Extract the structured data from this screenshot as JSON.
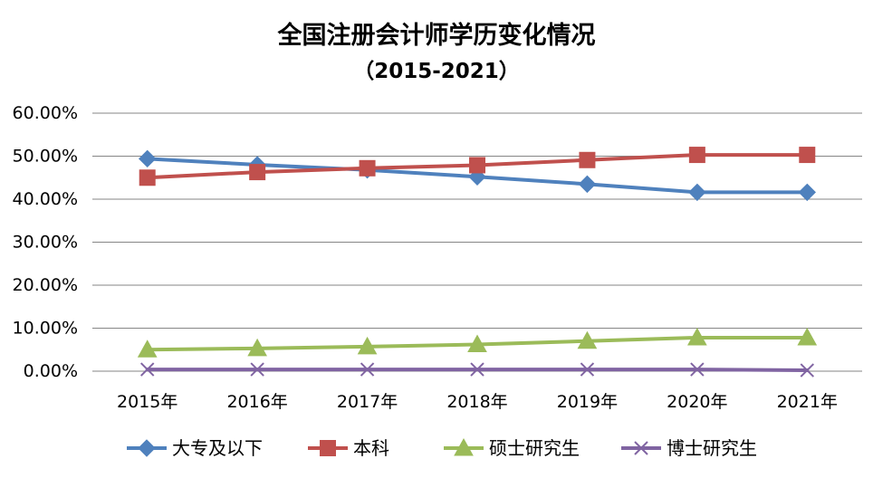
{
  "chart_data": {
    "type": "line",
    "title": "全国注册会计师学历变化情况",
    "subtitle": "（2015-2021）",
    "categories": [
      "2015年",
      "2016年",
      "2017年",
      "2018年",
      "2019年",
      "2020年",
      "2021年"
    ],
    "ylim": [
      0,
      60
    ],
    "yticks": [
      "0.00%",
      "10.00%",
      "20.00%",
      "30.00%",
      "40.00%",
      "50.00%",
      "60.00%"
    ],
    "grid": true,
    "legend_position": "bottom",
    "series": [
      {
        "name": "大专及以下",
        "color": "#4f81bd",
        "marker": "diamond",
        "values": [
          49.4,
          48.0,
          46.8,
          45.2,
          43.5,
          41.6,
          41.6
        ]
      },
      {
        "name": "本科",
        "color": "#c0504d",
        "marker": "square",
        "values": [
          45.0,
          46.3,
          47.2,
          47.9,
          49.1,
          50.3,
          50.3
        ]
      },
      {
        "name": "硕士研究生",
        "color": "#9bbb59",
        "marker": "triangle",
        "values": [
          5.0,
          5.3,
          5.7,
          6.2,
          7.0,
          7.8,
          7.8
        ]
      },
      {
        "name": "博士研究生",
        "color": "#8064a2",
        "marker": "x",
        "values": [
          0.4,
          0.4,
          0.4,
          0.4,
          0.4,
          0.4,
          0.2
        ]
      }
    ]
  }
}
